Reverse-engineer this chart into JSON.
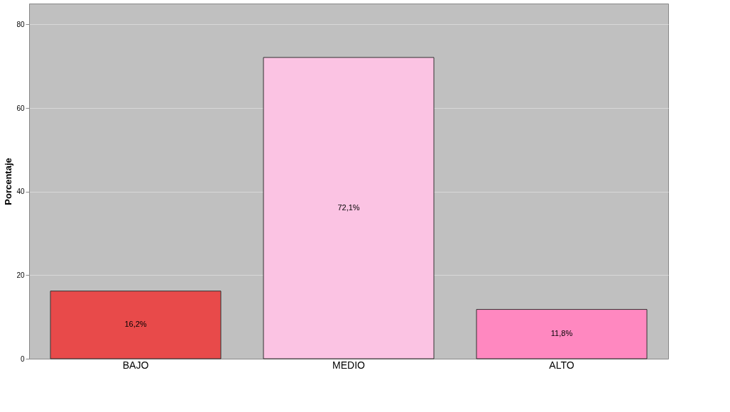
{
  "chart_data": {
    "type": "bar",
    "ylabel": "Porcentaje",
    "categories": [
      "BAJO",
      "MEDIO",
      "ALTO"
    ],
    "values": [
      16.2,
      72.1,
      11.8
    ],
    "colors": [
      "#e84a4a",
      "#fbc3e3",
      "#ff88c0"
    ],
    "value_labels": [
      "16,2%",
      "72,1%",
      "11,8%"
    ],
    "ylim": [
      0,
      85
    ],
    "yticks": [
      0,
      20,
      40,
      60,
      80
    ],
    "grid": "y"
  }
}
